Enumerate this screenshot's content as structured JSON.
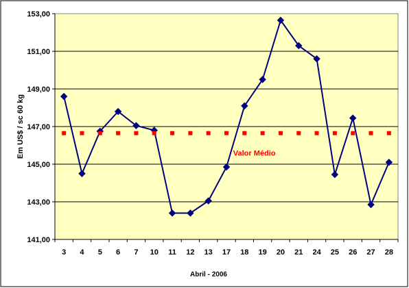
{
  "chart_data": {
    "type": "line",
    "title": "",
    "xlabel": "Abril - 2006",
    "ylabel": "Em US$ / sc 60 kg",
    "categories": [
      "3",
      "4",
      "5",
      "6",
      "7",
      "10",
      "11",
      "12",
      "13",
      "17",
      "18",
      "19",
      "20",
      "21",
      "24",
      "25",
      "26",
      "27",
      "28"
    ],
    "y_ticks": [
      "141,00",
      "143,00",
      "145,00",
      "147,00",
      "149,00",
      "151,00",
      "153,00"
    ],
    "ylim": [
      141,
      153
    ],
    "grid": "horizontal",
    "legend": "none",
    "series": [
      {
        "name": "",
        "color": "#000080",
        "marker": "diamond",
        "values": [
          148.6,
          144.5,
          146.75,
          147.8,
          147.05,
          146.8,
          142.4,
          142.4,
          143.05,
          144.85,
          148.1,
          149.5,
          152.65,
          151.3,
          150.6,
          144.45,
          147.45,
          142.85,
          145.1
        ]
      },
      {
        "name": "Valor Médio",
        "color": "#ff0000",
        "marker": "square",
        "values": [
          146.65,
          146.65,
          146.65,
          146.65,
          146.65,
          146.65,
          146.65,
          146.65,
          146.65,
          146.65,
          146.65,
          146.65,
          146.65,
          146.65,
          146.65,
          146.65,
          146.65,
          146.65,
          146.65
        ]
      }
    ],
    "annotations": [
      {
        "text": "Valor Médio",
        "x": "19",
        "y": 145.6,
        "color": "#ff0000"
      }
    ],
    "colors": {
      "plot_background": "#ffffc0",
      "grid": "#000000"
    }
  }
}
